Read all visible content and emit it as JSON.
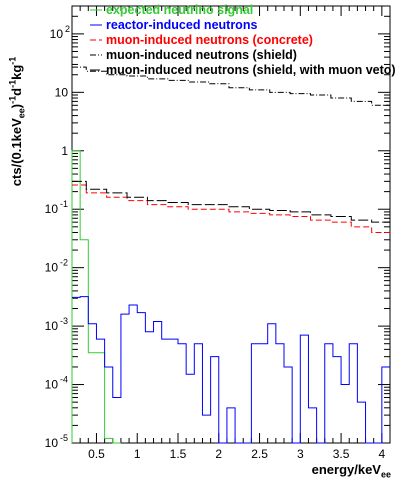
{
  "chart_data": {
    "type": "line",
    "xlabel": "energy/keV",
    "xlabel_sub": "ee",
    "ylabel_parts": {
      "prefix": "cts/(0.1keV",
      "sub": "ee",
      "mid1": ")",
      "sup1": "-1",
      "mid2": "d",
      "sup2": "-1",
      "mid3": "kg",
      "sup3": "-1"
    },
    "y_scale": "log",
    "xlim": [
      0.2,
      4.1
    ],
    "ylim": [
      1e-05,
      300
    ],
    "x_ticks": [
      {
        "v": 0.5,
        "label": "0.5"
      },
      {
        "v": 1,
        "label": "1"
      },
      {
        "v": 1.5,
        "label": "1.5"
      },
      {
        "v": 2,
        "label": "2"
      },
      {
        "v": 2.5,
        "label": "2.5"
      },
      {
        "v": 3,
        "label": "3"
      },
      {
        "v": 3.5,
        "label": "3.5"
      },
      {
        "v": 4,
        "label": "4"
      }
    ],
    "y_ticks": [
      {
        "v": 1e-05,
        "base": "10",
        "exp": "-5"
      },
      {
        "v": 0.0001,
        "base": "10",
        "exp": "-4"
      },
      {
        "v": 0.001,
        "base": "10",
        "exp": "-3"
      },
      {
        "v": 0.01,
        "base": "10",
        "exp": "-2"
      },
      {
        "v": 0.1,
        "base": "10",
        "exp": "-1"
      },
      {
        "v": 1,
        "base": "1",
        "exp": ""
      },
      {
        "v": 10,
        "base": "10",
        "exp": ""
      },
      {
        "v": 100,
        "base": "10",
        "exp": "2"
      }
    ],
    "legend_position": "top",
    "series": [
      {
        "name": "expected neutrino signal",
        "color": "#33cc33",
        "style": "histogram-solid",
        "bin_edges": [
          0.2,
          0.3,
          0.4,
          0.5,
          0.6,
          0.7,
          0.8
        ],
        "values": [
          1.0,
          0.03,
          0.00035,
          0.00035,
          1.2e-05,
          1e-06
        ]
      },
      {
        "name": "reactor-induced neutrons",
        "color": "#0000ff",
        "style": "histogram-solid",
        "bin_edges": [
          0.2,
          0.3,
          0.4,
          0.5,
          0.6,
          0.7,
          0.8,
          0.9,
          1.0,
          1.1,
          1.2,
          1.3,
          1.4,
          1.5,
          1.6,
          1.7,
          1.8,
          1.9,
          2.0,
          2.1,
          2.2,
          2.3,
          2.4,
          2.5,
          2.6,
          2.7,
          2.8,
          2.9,
          3.0,
          3.1,
          3.2,
          3.3,
          3.4,
          3.5,
          3.6,
          3.7,
          3.8,
          3.9,
          4.0,
          4.1
        ],
        "values": [
          0.0031,
          0.0032,
          0.0011,
          0.0006,
          0.0002,
          6e-05,
          0.0016,
          0.0023,
          0.0017,
          0.0008,
          0.0012,
          0.0006,
          0.0006,
          0.0005,
          0.00015,
          0.0005,
          3e-05,
          0.0003,
          5e-06,
          4e-05,
          5e-06,
          5e-06,
          0.0005,
          0.0005,
          0.0011,
          0.0005,
          0.0002,
          8e-06,
          0.0007,
          4e-05,
          5e-06,
          0.0005,
          0.0003,
          0.0001,
          0.0005,
          5e-05,
          5e-06,
          5e-06,
          0.0002
        ]
      },
      {
        "name": "muon-induced neutrons (concrete)",
        "color": "#ff0000",
        "style": "histogram-dashed",
        "x": [
          0.25,
          0.5,
          0.75,
          1.0,
          1.25,
          1.5,
          1.75,
          2.0,
          2.25,
          2.5,
          2.75,
          3.0,
          3.25,
          3.5,
          3.75,
          4.0
        ],
        "values": [
          0.26,
          0.19,
          0.16,
          0.14,
          0.12,
          0.11,
          0.1,
          0.1,
          0.09,
          0.085,
          0.08,
          0.075,
          0.065,
          0.06,
          0.05,
          0.04
        ]
      },
      {
        "name": "muon-induced neutrons (shield)",
        "color": "#000000",
        "style": "histogram-dashdot",
        "x": [
          0.25,
          0.5,
          0.75,
          1.0,
          1.25,
          1.5,
          1.75,
          2.0,
          2.25,
          2.5,
          2.75,
          3.0,
          3.25,
          3.5,
          3.75,
          4.0
        ],
        "values": [
          27,
          23,
          20,
          19,
          17,
          16,
          15,
          14,
          12,
          11,
          10,
          9.5,
          9,
          8,
          7,
          6
        ]
      },
      {
        "name": "muon-induced neutrons (shield, with muon veto)",
        "color": "#000000",
        "style": "histogram-longdash",
        "x": [
          0.25,
          0.5,
          0.75,
          1.0,
          1.25,
          1.5,
          1.75,
          2.0,
          2.25,
          2.5,
          2.75,
          3.0,
          3.25,
          3.5,
          3.75,
          4.0
        ],
        "values": [
          0.3,
          0.22,
          0.19,
          0.16,
          0.14,
          0.13,
          0.12,
          0.12,
          0.11,
          0.1,
          0.095,
          0.09,
          0.08,
          0.075,
          0.065,
          0.06
        ]
      }
    ]
  }
}
